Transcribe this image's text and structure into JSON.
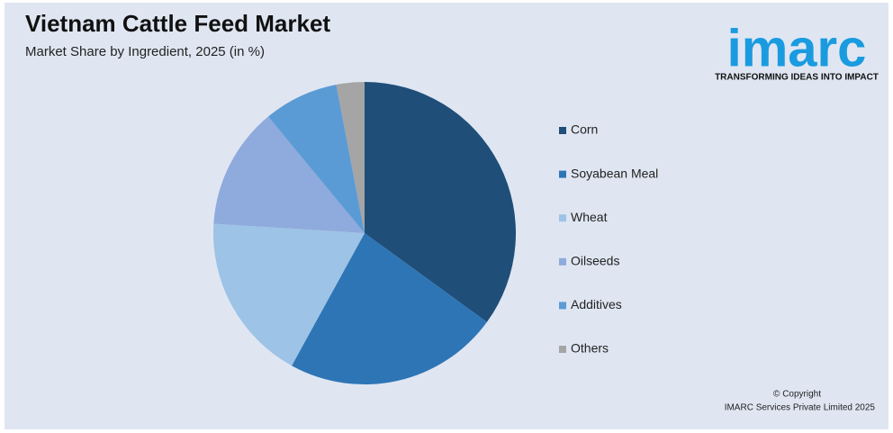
{
  "chart_data": {
    "type": "pie",
    "title": "Vietnam Cattle Feed Market",
    "subtitle": "Market Share by Ingredient, 2025 (in %)",
    "categories": [
      "Corn",
      "Soyabean Meal",
      "Wheat",
      "Oilseeds",
      "Additives",
      "Others"
    ],
    "values": [
      35,
      23,
      18,
      13,
      8,
      3
    ],
    "colors": [
      "#1f4e79",
      "#2e75b6",
      "#9dc3e6",
      "#8faadc",
      "#5b9bd5",
      "#a5a5a5"
    ],
    "legend": "right"
  },
  "logo": {
    "name": "imarc",
    "tagline": "TRANSFORMING IDEAS INTO IMPACT"
  },
  "footer": {
    "copyright": "© Copyright",
    "owner": "IMARC Services Private Limited 2025"
  }
}
